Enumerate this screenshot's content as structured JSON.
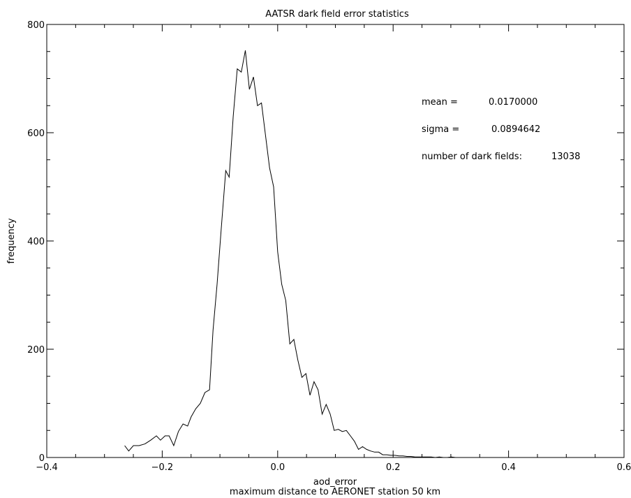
{
  "chart_data": {
    "type": "line",
    "title": "AATSR dark field error statistics",
    "xlabel": "aod_error",
    "xlabel_sub": "maximum distance to AERONET station 50 km",
    "ylabel": "frequency",
    "xlim": [
      -0.4,
      0.6
    ],
    "ylim": [
      0,
      800
    ],
    "x_ticks": [
      -0.4,
      -0.2,
      0.0,
      0.2,
      0.4,
      0.6
    ],
    "x_tick_labels": [
      "−0.4",
      "−0.2",
      "0.0",
      "0.2",
      "0.4",
      "0.6"
    ],
    "y_ticks": [
      0,
      200,
      400,
      600,
      800
    ],
    "y_tick_labels": [
      "0",
      "200",
      "400",
      "600",
      "800"
    ],
    "grid": false,
    "line_color": "#000000",
    "annotations": {
      "mean_label": "mean =",
      "mean_value": "0.0170000",
      "sigma_label": "sigma =",
      "sigma_value": "0.0894642",
      "count_label": "number of dark fields:",
      "count_value": "13038"
    },
    "series": [
      {
        "x": [
          -0.265,
          -0.258,
          -0.25,
          -0.24,
          -0.23,
          -0.22,
          -0.21,
          -0.203,
          -0.195,
          -0.188,
          -0.18,
          -0.172,
          -0.164,
          -0.156,
          -0.15,
          -0.142,
          -0.134,
          -0.126,
          -0.118,
          -0.112,
          -0.105,
          -0.098,
          -0.09,
          -0.084,
          -0.077,
          -0.07,
          -0.063,
          -0.056,
          -0.049,
          -0.042,
          -0.035,
          -0.028,
          -0.021,
          -0.014,
          -0.007,
          0.0,
          0.007,
          0.014,
          0.021,
          0.028,
          0.035,
          0.042,
          0.049,
          0.056,
          0.063,
          0.07,
          0.077,
          0.084,
          0.091,
          0.098,
          0.105,
          0.112,
          0.119,
          0.126,
          0.133,
          0.14,
          0.147,
          0.154,
          0.161,
          0.168,
          0.175,
          0.182,
          0.189,
          0.196,
          0.203,
          0.21,
          0.217,
          0.224,
          0.231,
          0.238,
          0.245,
          0.252,
          0.259,
          0.266,
          0.273,
          0.28,
          0.287,
          0.294,
          0.301,
          0.308,
          0.315,
          0.322,
          0.329,
          0.336,
          0.343,
          0.35,
          0.357,
          0.364,
          0.371,
          0.378,
          0.385,
          0.392,
          0.399,
          0.406,
          0.413,
          0.42,
          0.427,
          0.434,
          0.44
        ],
        "y": [
          22,
          12,
          22,
          22,
          25,
          32,
          40,
          32,
          40,
          40,
          22,
          48,
          62,
          58,
          75,
          90,
          100,
          120,
          125,
          235,
          320,
          420,
          530,
          518,
          630,
          718,
          712,
          752,
          680,
          703,
          650,
          655,
          595,
          535,
          500,
          380,
          320,
          290,
          210,
          218,
          180,
          148,
          155,
          115,
          140,
          125,
          80,
          98,
          80,
          50,
          52,
          48,
          50,
          40,
          30,
          15,
          20,
          15,
          12,
          10,
          10,
          5,
          5,
          4,
          4,
          3,
          3,
          2,
          2,
          1,
          1,
          1,
          1,
          1,
          0,
          1,
          0,
          0,
          1,
          0,
          0,
          0,
          0,
          0,
          0,
          0,
          0,
          0,
          0,
          0,
          0,
          0,
          0,
          0,
          0,
          0,
          0,
          0,
          0
        ]
      }
    ]
  }
}
